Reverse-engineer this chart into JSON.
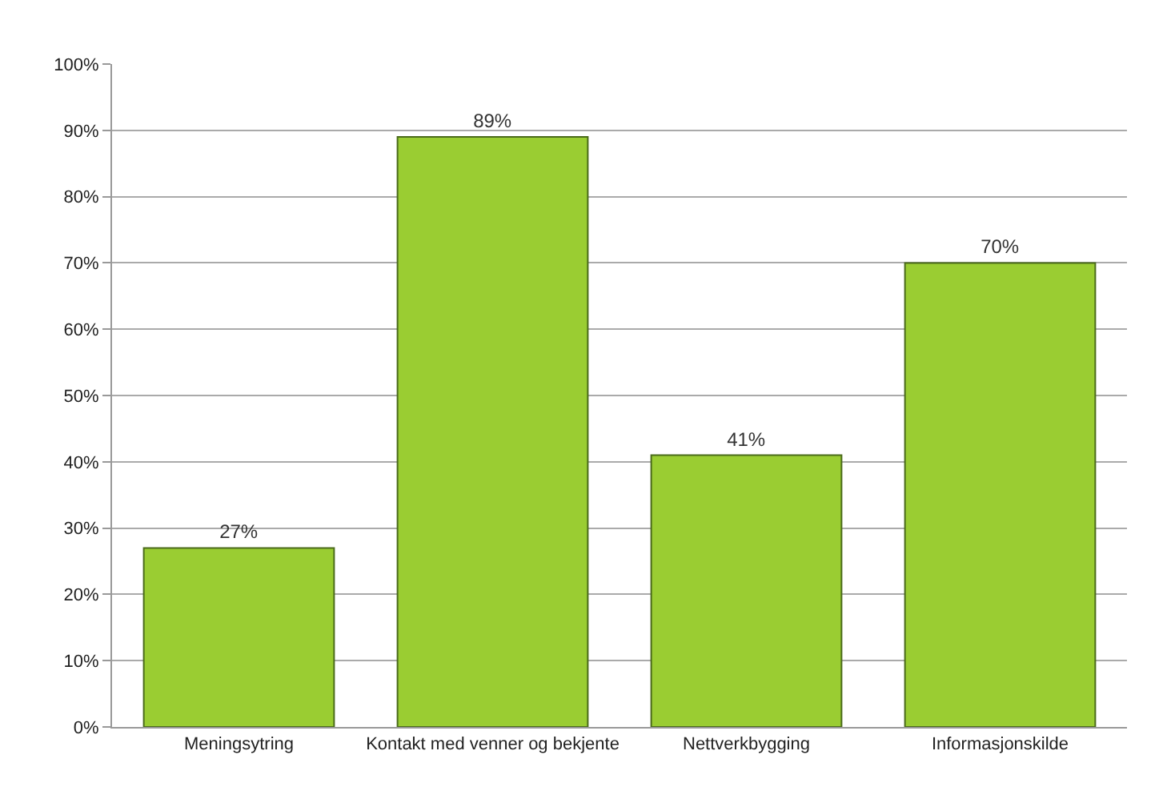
{
  "chart_data": {
    "type": "bar",
    "categories": [
      "Meningsytring",
      "Kontakt med venner og bekjente",
      "Nettverkbygging",
      "Informasjonskilde"
    ],
    "values": [
      27,
      89,
      41,
      70
    ],
    "color": "#9acd32",
    "value_labels": [
      "27%",
      "89%",
      "41%",
      "70%"
    ],
    "ylim": [
      0,
      100
    ],
    "yticks": [
      {
        "value": 0,
        "label": "0%"
      },
      {
        "value": 10,
        "label": "10%"
      },
      {
        "value": 20,
        "label": "20%"
      },
      {
        "value": 30,
        "label": "30%"
      },
      {
        "value": 40,
        "label": "40%"
      },
      {
        "value": 50,
        "label": "50%"
      },
      {
        "value": 60,
        "label": "60%"
      },
      {
        "value": 70,
        "label": "70%"
      },
      {
        "value": 80,
        "label": "80%"
      },
      {
        "value": 90,
        "label": "90%"
      },
      {
        "value": 100,
        "label": "100%"
      }
    ],
    "grid": "y"
  }
}
